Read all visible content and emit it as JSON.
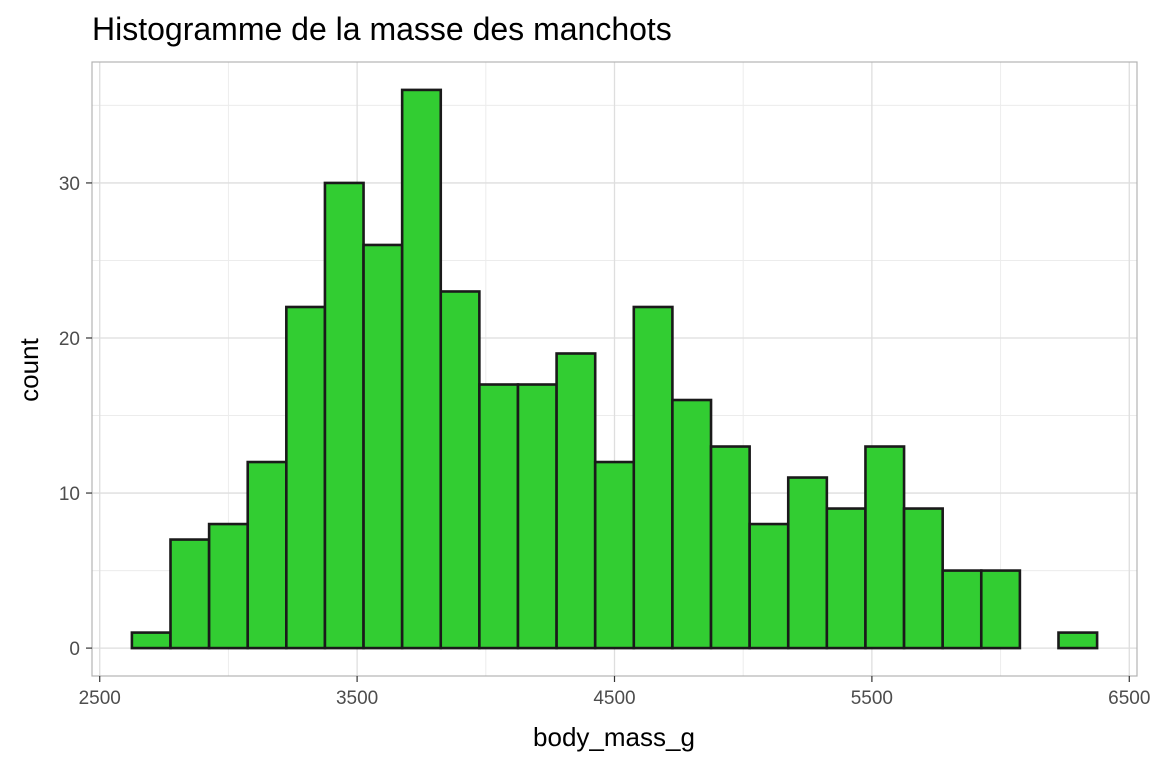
{
  "chart_data": {
    "type": "bar",
    "title": "Histogramme de la masse des manchots",
    "xlabel": "body_mass_g",
    "ylabel": "count",
    "xlim": [
      2470,
      6530
    ],
    "ylim": [
      -1.8,
      37.8
    ],
    "x_ticks": [
      2500,
      3500,
      4500,
      5500,
      6500
    ],
    "x_tick_labels": [
      "2500",
      "3500",
      "4500",
      "5500",
      "6500"
    ],
    "y_ticks": [
      0,
      10,
      20,
      30
    ],
    "y_tick_labels": [
      "0",
      "10",
      "20",
      "30"
    ],
    "x_minor_ticks": [
      3000,
      4000,
      5000,
      6000
    ],
    "y_minor_ticks": [
      5,
      15,
      25,
      35
    ],
    "grid": true,
    "bin_start": 2625,
    "bin_width": 150,
    "values": [
      1,
      7,
      8,
      12,
      22,
      30,
      26,
      36,
      23,
      17,
      17,
      19,
      12,
      22,
      16,
      13,
      8,
      11,
      9,
      13,
      9,
      5,
      5,
      0,
      1
    ],
    "fill_color": "#32CD32",
    "outline_color": "#1a1a1a",
    "grid_major_color": "#dedede",
    "grid_minor_color": "#ececec",
    "panel_border_color": "#b3b3b3",
    "tick_label_color": "#4d4d4d"
  }
}
